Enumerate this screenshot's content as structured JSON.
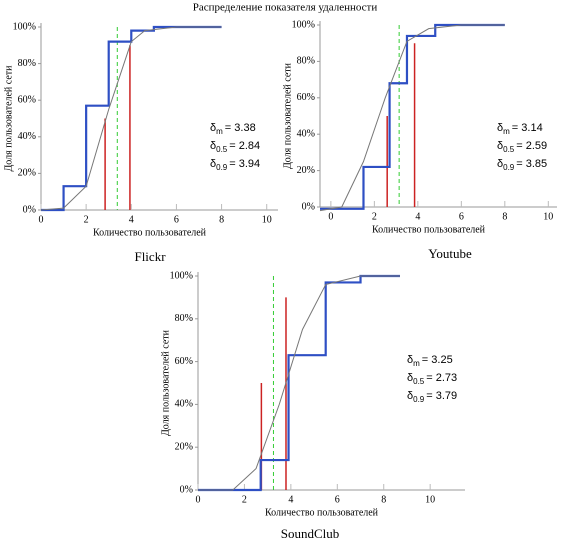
{
  "title": "Распределение показателя удаленности",
  "chart_data": [
    {
      "type": "step-cdf",
      "title": "Flickr",
      "x_label": "Количество пользователей",
      "y_label": "Доля пользователей сети",
      "xlim": [
        0,
        10.5
      ],
      "xticks": [
        0,
        2,
        4,
        6,
        8,
        10
      ],
      "ylim": [
        0,
        100
      ],
      "yticks": [
        {
          "value": 0,
          "label": "0%"
        },
        {
          "value": 20,
          "label": "20%"
        },
        {
          "value": 40,
          "label": "40%"
        },
        {
          "value": 60,
          "label": "60%"
        },
        {
          "value": 80,
          "label": "80%"
        },
        {
          "value": 100,
          "label": "100%"
        }
      ],
      "series": [
        {
          "name": "step",
          "color": "#2e4fc4",
          "x": [
            0,
            1,
            2,
            3,
            4,
            5,
            8
          ],
          "values": [
            0,
            13,
            57,
            92,
            98,
            100,
            100
          ]
        },
        {
          "name": "smooth",
          "color": "#777777",
          "x": [
            0,
            1,
            2,
            3,
            4,
            4.6,
            6,
            8
          ],
          "values": [
            0,
            1,
            13,
            55,
            92,
            98,
            100,
            100
          ]
        }
      ],
      "symbol": "δ",
      "stats": [
        {
          "sub": "m",
          "label": "= 3.38",
          "value": 3.38,
          "color": "#33cc33"
        },
        {
          "sub": "0.5",
          "label": "= 2.84",
          "value": 2.84,
          "level": 50,
          "color": "#cc2222"
        },
        {
          "sub": "0.9",
          "label": "= 3.94",
          "value": 3.94,
          "level": 90,
          "color": "#cc2222"
        }
      ]
    },
    {
      "type": "step-cdf",
      "title": "Youtube",
      "x_label": "Количество пользователей",
      "y_label": "Доля пользователей сети",
      "xlim": [
        -0.5,
        10.4
      ],
      "xticks": [
        0,
        2,
        4,
        6,
        8,
        10
      ],
      "ylim": [
        0,
        100
      ],
      "yticks": [
        {
          "value": 0,
          "label": "0%"
        },
        {
          "value": 20,
          "label": "20%"
        },
        {
          "value": 40,
          "label": "40%"
        },
        {
          "value": 60,
          "label": "60%"
        },
        {
          "value": 80,
          "label": "80%"
        },
        {
          "value": 100,
          "label": "100%"
        }
      ],
      "series": [
        {
          "name": "step",
          "color": "#2e4fc4",
          "x": [
            -0.5,
            1.5,
            2.7,
            3.5,
            4.8,
            8
          ],
          "values": [
            -1,
            22,
            68,
            94,
            100,
            100
          ]
        },
        {
          "name": "smooth",
          "color": "#777777",
          "x": [
            -0.5,
            0.5,
            1.5,
            2.5,
            3.5,
            4.5,
            6,
            8
          ],
          "values": [
            -2,
            0,
            25,
            60,
            91,
            98,
            100,
            100
          ]
        }
      ],
      "symbol": "δ",
      "stats": [
        {
          "sub": "m",
          "label": "= 3.14",
          "value": 3.14,
          "color": "#33cc33"
        },
        {
          "sub": "0.5",
          "label": "= 2.59",
          "value": 2.59,
          "level": 50,
          "color": "#cc2222"
        },
        {
          "sub": "0.9",
          "label": "= 3.85",
          "value": 3.85,
          "level": 90,
          "color": "#cc2222"
        }
      ]
    },
    {
      "type": "step-cdf",
      "title": "SoundClub",
      "x_label": "Количество пользователей",
      "y_label": "Доля пользователей сети",
      "xlim": [
        0,
        11.5
      ],
      "xticks": [
        0,
        2,
        4,
        6,
        8,
        10
      ],
      "ylim": [
        0,
        100
      ],
      "yticks": [
        {
          "value": 0,
          "label": "0%"
        },
        {
          "value": 20,
          "label": "20%"
        },
        {
          "value": 40,
          "label": "40%"
        },
        {
          "value": 60,
          "label": "60%"
        },
        {
          "value": 80,
          "label": "80%"
        },
        {
          "value": 100,
          "label": "100%"
        }
      ],
      "series": [
        {
          "name": "step",
          "color": "#2e4fc4",
          "x": [
            0,
            2.7,
            3.9,
            5.5,
            7,
            8.7
          ],
          "values": [
            0,
            14,
            63,
            97,
            100,
            100
          ]
        },
        {
          "name": "smooth",
          "color": "#777777",
          "x": [
            0,
            1.5,
            2.5,
            3.5,
            4.5,
            5.5,
            7,
            8.7
          ],
          "values": [
            0,
            0,
            10,
            40,
            75,
            96,
            100,
            100
          ]
        }
      ],
      "symbol": "δ",
      "stats": [
        {
          "sub": "m",
          "label": "= 3.25",
          "value": 3.25,
          "color": "#33cc33"
        },
        {
          "sub": "0.5",
          "label": "= 2.73",
          "value": 2.73,
          "level": 50,
          "color": "#cc2222"
        },
        {
          "sub": "0.9",
          "label": "= 3.79",
          "value": 3.79,
          "level": 90,
          "color": "#cc2222"
        }
      ]
    }
  ]
}
